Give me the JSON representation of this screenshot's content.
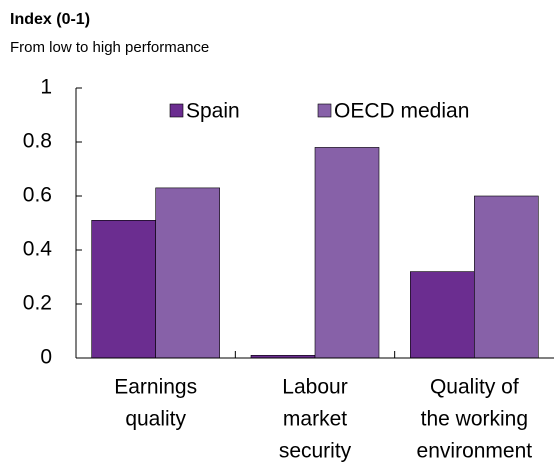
{
  "chart_data": {
    "type": "bar",
    "title": "Index (0-1)",
    "subtitle": "From low to high performance",
    "categories": [
      [
        "Earnings",
        "quality"
      ],
      [
        "Labour",
        "market",
        "security"
      ],
      [
        "Quality of",
        "the working",
        "environment"
      ]
    ],
    "series": [
      {
        "name": "Spain",
        "color": "#6b2d90",
        "values": [
          0.51,
          0.01,
          0.32
        ]
      },
      {
        "name": "OECD median",
        "color": "#8761a8",
        "values": [
          0.63,
          0.78,
          0.6
        ]
      }
    ],
    "ylim": [
      0,
      1
    ],
    "yticks": [
      0,
      0.2,
      0.4,
      0.6,
      0.8,
      1
    ],
    "grid": false,
    "legend": "top"
  }
}
